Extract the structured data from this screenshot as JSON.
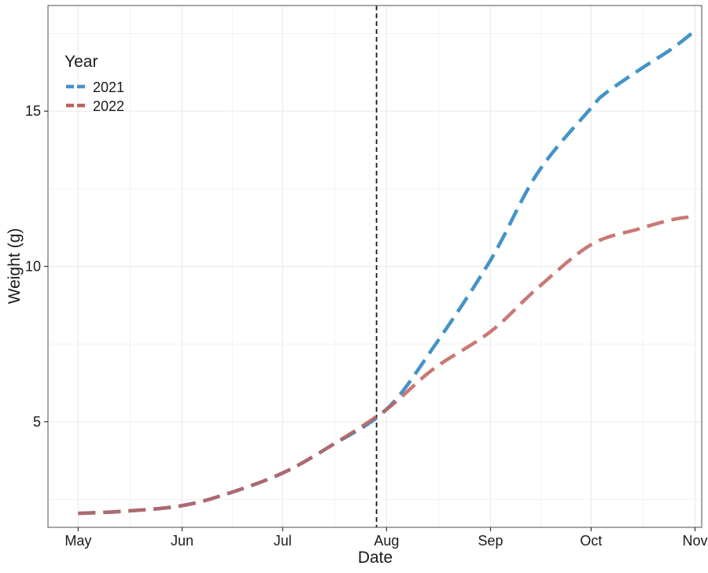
{
  "chart_data": {
    "type": "line",
    "xlabel": "Date",
    "ylabel": "Weight (g)",
    "x_ticks": [
      "May",
      "Jun",
      "Jul",
      "Aug",
      "Sep",
      "Oct",
      "Nov"
    ],
    "x_tick_dates": [
      "05-01",
      "06-01",
      "07-01",
      "08-01",
      "09-01",
      "10-01",
      "11-01"
    ],
    "xlim": [
      "04-22",
      "11-03"
    ],
    "y_ticks": [
      5,
      10,
      15
    ],
    "ylim": [
      1.6,
      18.4
    ],
    "grid": true,
    "vline": {
      "x": "07-29",
      "style": "dashed",
      "color": "#1a1a1a"
    },
    "legend": {
      "title": "Year",
      "position": "top-left"
    },
    "series": [
      {
        "name": "2021",
        "color": "#4393c8",
        "style": "dashed",
        "x": [
          "05-01",
          "05-15",
          "06-01",
          "06-15",
          "07-01",
          "07-15",
          "08-01",
          "08-15",
          "09-01",
          "09-15",
          "10-01",
          "10-05",
          "10-15",
          "10-25",
          "10-31"
        ],
        "y": [
          2.05,
          2.12,
          2.3,
          2.7,
          3.35,
          4.2,
          5.4,
          7.4,
          10.2,
          13.0,
          15.1,
          15.55,
          16.3,
          17.0,
          17.5
        ]
      },
      {
        "name": "2022",
        "color": "#c0615e",
        "style": "dashed",
        "x": [
          "05-01",
          "05-15",
          "06-01",
          "06-15",
          "07-01",
          "07-15",
          "08-01",
          "08-15",
          "09-01",
          "09-15",
          "10-01",
          "10-15",
          "10-25",
          "10-31"
        ],
        "y": [
          2.05,
          2.12,
          2.3,
          2.7,
          3.35,
          4.2,
          5.4,
          6.7,
          7.9,
          9.3,
          10.7,
          11.2,
          11.5,
          11.6
        ]
      }
    ]
  }
}
